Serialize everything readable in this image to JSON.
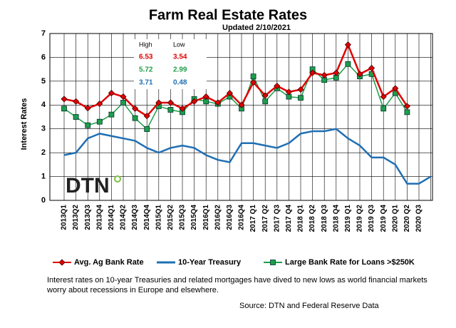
{
  "chart_data": {
    "type": "line",
    "title": "Farm Real Estate Rates",
    "subtitle": "Updated  2/10/2021",
    "y_label": "Interest Rates",
    "logo": "DTN",
    "categories": [
      "2013Q1",
      "2013Q2",
      "2013Q3",
      "2013Q4",
      "2014Q1",
      "2014Q2",
      "2014Q3",
      "2014Q4",
      "2015Q1",
      "2015Q2",
      "2015Q3",
      "2015Q4",
      "2016Q1",
      "2016Q2",
      "2016Q3",
      "2016Q4",
      "2017 Q1",
      "2017 Q2",
      "2017 Q3",
      "2017 Q4",
      "2018 Q1",
      "2018 Q2",
      "2018 Q3",
      "2018 Q4",
      "2019 Q1",
      "2019 Q2",
      "2019 Q3",
      "2019 Q4",
      "2020 Q1",
      "2020 Q2",
      "2020 Q3",
      null
    ],
    "series": [
      {
        "name": "Avg. Ag Bank Rate",
        "color": "#e00000",
        "marker": "diamond",
        "values": [
          4.25,
          4.15,
          3.87,
          4.05,
          4.5,
          4.35,
          3.85,
          3.54,
          4.1,
          4.1,
          3.85,
          4.15,
          4.35,
          4.1,
          4.5,
          4.0,
          4.95,
          4.4,
          4.8,
          4.55,
          4.65,
          5.35,
          5.25,
          5.35,
          6.53,
          5.3,
          5.55,
          4.35,
          4.7,
          3.95,
          null,
          null
        ]
      },
      {
        "name": "10-Year Treasury",
        "color": "#1f6fb4",
        "marker": "none",
        "values": [
          1.9,
          2.0,
          2.6,
          2.8,
          2.7,
          2.6,
          2.5,
          2.2,
          2.0,
          2.2,
          2.3,
          2.2,
          1.9,
          1.7,
          1.6,
          2.4,
          2.4,
          2.3,
          2.2,
          2.4,
          2.8,
          2.9,
          2.9,
          3.0,
          2.6,
          2.3,
          1.8,
          1.8,
          1.5,
          0.7,
          0.7,
          1.0
        ]
      },
      {
        "name": "Large Bank Rate for Loans >$250K",
        "color": "#1e9e4a",
        "marker": "square",
        "values": [
          3.85,
          3.5,
          3.15,
          3.3,
          3.6,
          4.1,
          3.45,
          2.99,
          3.95,
          3.8,
          3.7,
          4.25,
          4.15,
          4.05,
          4.35,
          3.85,
          5.2,
          4.15,
          4.7,
          4.35,
          4.3,
          5.5,
          5.05,
          5.15,
          5.72,
          5.2,
          5.3,
          3.85,
          4.5,
          3.7,
          null,
          null
        ]
      }
    ],
    "ylim": [
      0,
      7
    ],
    "yticks": [
      0,
      1,
      2,
      3,
      4,
      5,
      6,
      7
    ],
    "grid": true,
    "inset": {
      "headers": [
        "High",
        "Low"
      ],
      "rows": [
        {
          "color": "#e00000",
          "values": [
            6.53,
            3.54
          ]
        },
        {
          "color": "#1e9e4a",
          "values": [
            5.72,
            2.99
          ]
        },
        {
          "color": "#1f6fb4",
          "values": [
            3.71,
            0.48
          ]
        }
      ]
    },
    "caption": "Interest rates on 10-year Treasuries and related mortgages have dived to new lows as world financial markets worry about recessions in Europe and elsewhere.",
    "source": "Source: DTN and Federal Reserve Data"
  }
}
